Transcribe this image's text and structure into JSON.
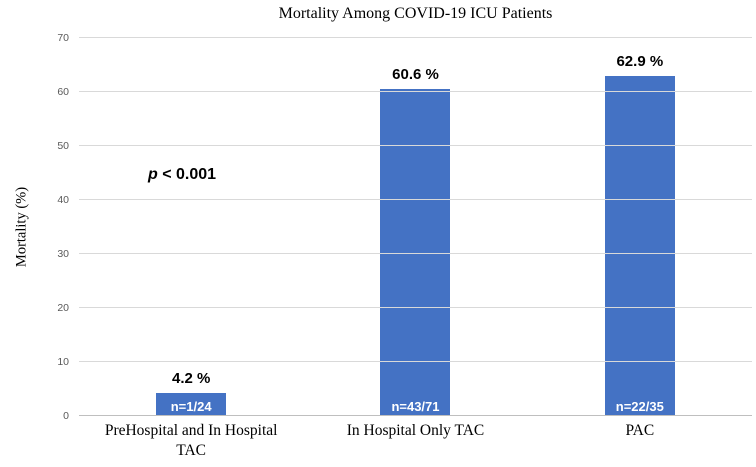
{
  "chart_data": {
    "type": "bar",
    "title": "Mortality Among COVID-19 ICU Patients",
    "xlabel": "",
    "ylabel": "Mortality (%)",
    "ylim": [
      0,
      70
    ],
    "yticks": [
      0,
      10,
      20,
      30,
      40,
      50,
      60,
      70
    ],
    "grid": true,
    "legend": false,
    "categories": [
      "PreHospital and In Hospital TAC",
      "In Hospital Only TAC",
      "PAC"
    ],
    "values": [
      4.2,
      60.6,
      62.9
    ],
    "value_labels": [
      "4.2 %",
      "60.6 %",
      "62.9 %"
    ],
    "bar_inner_labels": [
      "n=1/24",
      "n=43/71",
      "n=22/35"
    ],
    "annotation": {
      "italic_symbol": "p",
      "text": " < 0.001"
    },
    "colors": {
      "bar": "#4472C4",
      "gridline": "#D9D9D9",
      "axis_line": "#BFBFBF",
      "tick_label": "#595959",
      "inner_label_text": "#FFFFFF"
    }
  }
}
